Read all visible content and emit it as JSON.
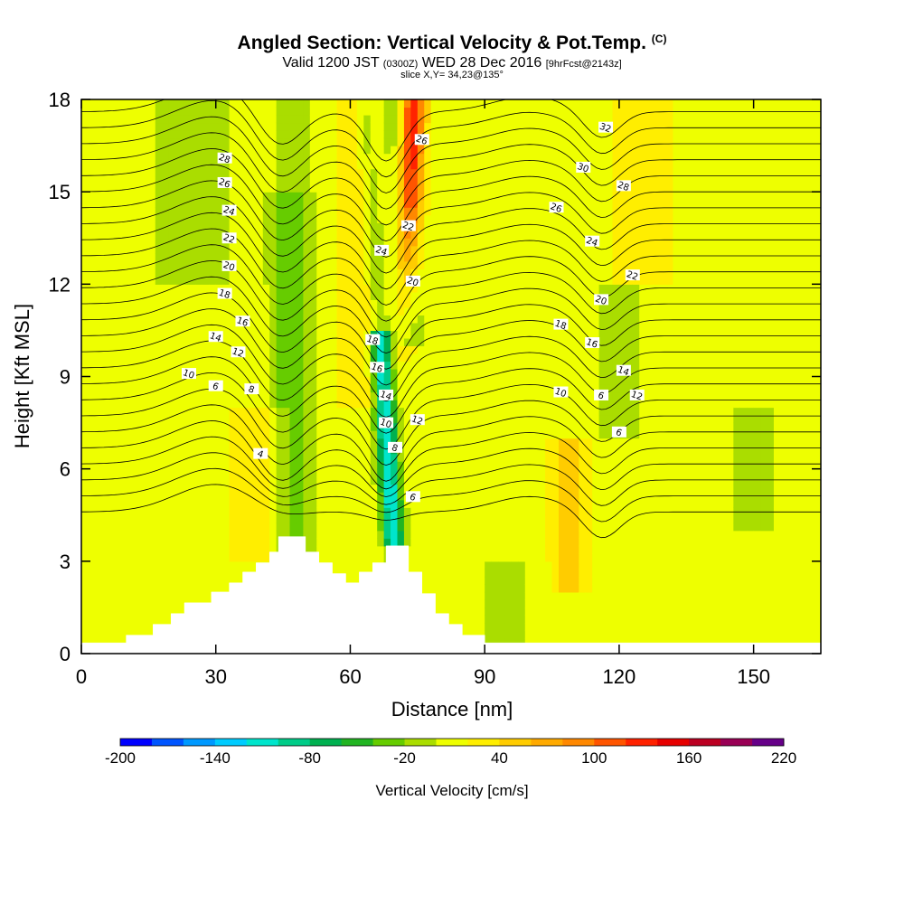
{
  "header": {
    "title": "Angled Section: Vertical Velocity & Pot.Temp.",
    "title_mark": "(C)",
    "valid_prefix": "Valid 1200 JST",
    "valid_utc": "(0300Z)",
    "valid_date": "WED 28 Dec 2016",
    "valid_fcst": "[9hrFcst@2143z]",
    "slice": "slice X,Y= 34,23@135°"
  },
  "chart_data": {
    "type": "heatmap",
    "title": "Angled Section: Vertical Velocity & Pot.Temp.",
    "xlabel": "Distance [nm]",
    "ylabel": "Height [Kft MSL]",
    "xlim": [
      0,
      165
    ],
    "ylim": [
      0,
      18
    ],
    "x_ticks": [
      0,
      30,
      60,
      90,
      120,
      150
    ],
    "y_ticks": [
      0,
      3,
      6,
      9,
      12,
      15,
      18
    ],
    "colorbar": {
      "label": "Vertical Velocity [cm/s]",
      "range": [
        -200,
        220
      ],
      "step": 20,
      "tick_labels": [
        -200,
        -140,
        -80,
        -20,
        40,
        100,
        160,
        220
      ],
      "colors": [
        "#0000ff",
        "#0055ff",
        "#0099ff",
        "#00ccff",
        "#00e5cc",
        "#00cc88",
        "#00b050",
        "#22b422",
        "#66cc00",
        "#aadd00",
        "#eeff00",
        "#ffee00",
        "#ffcc00",
        "#ffaa00",
        "#ff8800",
        "#ff5500",
        "#ff2200",
        "#e60000",
        "#bb0022",
        "#990055",
        "#660088"
      ]
    },
    "terrain": [
      [
        0,
        0.35
      ],
      [
        10,
        0.35
      ],
      [
        10,
        0.6
      ],
      [
        16,
        0.6
      ],
      [
        16,
        0.95
      ],
      [
        20,
        0.95
      ],
      [
        20,
        1.3
      ],
      [
        23,
        1.3
      ],
      [
        23,
        1.65
      ],
      [
        29,
        1.65
      ],
      [
        29,
        2
      ],
      [
        33,
        2
      ],
      [
        33,
        2.3
      ],
      [
        36,
        2.3
      ],
      [
        36,
        2.65
      ],
      [
        39,
        2.65
      ],
      [
        39,
        2.95
      ],
      [
        42,
        2.95
      ],
      [
        42,
        3.3
      ],
      [
        44,
        3.3
      ],
      [
        44,
        3.8
      ],
      [
        50,
        3.8
      ],
      [
        50,
        3.3
      ],
      [
        53,
        3.3
      ],
      [
        53,
        2.95
      ],
      [
        56,
        2.95
      ],
      [
        56,
        2.6
      ],
      [
        59,
        2.6
      ],
      [
        59,
        2.3
      ],
      [
        62,
        2.3
      ],
      [
        62,
        2.65
      ],
      [
        65,
        2.65
      ],
      [
        65,
        2.95
      ],
      [
        68,
        2.95
      ],
      [
        68,
        3.5
      ],
      [
        73,
        3.5
      ],
      [
        73,
        2.65
      ],
      [
        76,
        2.65
      ],
      [
        76,
        1.95
      ],
      [
        79,
        1.95
      ],
      [
        79,
        1.3
      ],
      [
        82,
        1.3
      ],
      [
        82,
        0.95
      ],
      [
        85,
        0.95
      ],
      [
        85,
        0.6
      ],
      [
        90,
        0.6
      ],
      [
        90,
        0.35
      ],
      [
        165,
        0.35
      ]
    ],
    "contour_levels": [
      4,
      6,
      8,
      10,
      12,
      14,
      16,
      18,
      20,
      22,
      24,
      26,
      28,
      30,
      32
    ],
    "contour_labels": [
      {
        "text": "28",
        "x": 32,
        "y": 16.1
      },
      {
        "text": "26",
        "x": 32,
        "y": 15.3
      },
      {
        "text": "24",
        "x": 33,
        "y": 14.4
      },
      {
        "text": "22",
        "x": 33,
        "y": 13.5
      },
      {
        "text": "20",
        "x": 33,
        "y": 12.6
      },
      {
        "text": "18",
        "x": 32,
        "y": 11.7
      },
      {
        "text": "16",
        "x": 36,
        "y": 10.8
      },
      {
        "text": "14",
        "x": 30,
        "y": 10.3
      },
      {
        "text": "12",
        "x": 35,
        "y": 9.8
      },
      {
        "text": "10",
        "x": 24,
        "y": 9.1
      },
      {
        "text": "6",
        "x": 30,
        "y": 8.7
      },
      {
        "text": "8",
        "x": 38,
        "y": 8.6
      },
      {
        "text": "4",
        "x": 40,
        "y": 6.5
      },
      {
        "text": "26",
        "x": 76,
        "y": 16.7
      },
      {
        "text": "24",
        "x": 67,
        "y": 13.1
      },
      {
        "text": "22",
        "x": 73,
        "y": 13.9
      },
      {
        "text": "20",
        "x": 74,
        "y": 12.1
      },
      {
        "text": "18",
        "x": 65,
        "y": 10.2
      },
      {
        "text": "16",
        "x": 66,
        "y": 9.3
      },
      {
        "text": "14",
        "x": 68,
        "y": 8.4
      },
      {
        "text": "10",
        "x": 68,
        "y": 7.5
      },
      {
        "text": "8",
        "x": 70,
        "y": 6.7
      },
      {
        "text": "12",
        "x": 75,
        "y": 7.6
      },
      {
        "text": "6",
        "x": 74,
        "y": 5.1
      },
      {
        "text": "32",
        "x": 117,
        "y": 17.1
      },
      {
        "text": "30",
        "x": 112,
        "y": 15.8
      },
      {
        "text": "28",
        "x": 121,
        "y": 15.2
      },
      {
        "text": "26",
        "x": 106,
        "y": 14.5
      },
      {
        "text": "24",
        "x": 114,
        "y": 13.4
      },
      {
        "text": "22",
        "x": 123,
        "y": 12.3
      },
      {
        "text": "20",
        "x": 116,
        "y": 11.5
      },
      {
        "text": "18",
        "x": 107,
        "y": 10.7
      },
      {
        "text": "16",
        "x": 114,
        "y": 10.1
      },
      {
        "text": "14",
        "x": 121,
        "y": 9.2
      },
      {
        "text": "12",
        "x": 124,
        "y": 8.4
      },
      {
        "text": "10",
        "x": 107,
        "y": 8.5
      },
      {
        "text": "6",
        "x": 116,
        "y": 8.4
      },
      {
        "text": "6",
        "x": 120,
        "y": 7.2
      }
    ]
  }
}
